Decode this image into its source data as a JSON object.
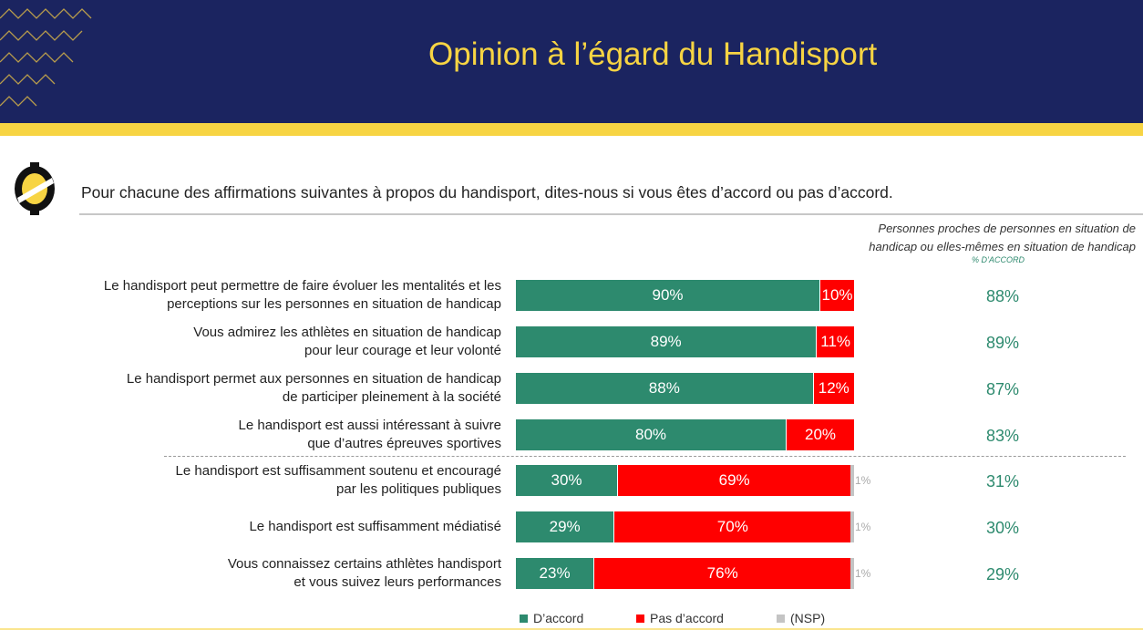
{
  "header": {
    "title": "Opinion à l’égard du Handisport"
  },
  "question": "Pour chacune des affirmations suivantes à propos du handisport, dites-nous si vous êtes d’accord ou pas d’accord.",
  "side_panel": {
    "heading": "Personnes proches de personnes en situation de handicap ou elles-mêmes en situation de handicap",
    "sub": "% D’ACCORD"
  },
  "colors": {
    "agree": "#2d8a6e",
    "disagree": "#ff0000",
    "nsp": "#c4c4c4",
    "header": "#1b2460",
    "accent": "#f7d443"
  },
  "chart_data": {
    "type": "bar",
    "orientation": "horizontal",
    "stacked": true,
    "categories": [
      "Le handisport peut permettre de faire évoluer les mentalités et les perceptions sur les personnes en situation de handicap",
      "Vous admirez les athlètes en situation de handicap pour leur courage et leur volonté",
      "Le handisport permet aux personnes en situation de handicap de participer pleinement à la société",
      "Le handisport est aussi intéressant à suivre que d’autres épreuves sportives",
      "Le handisport est suffisamment soutenu et encouragé par les politiques publiques",
      "Le handisport est suffisamment médiatisé",
      "Vous connaissez certains athlètes handisport et vous suivez leurs performances"
    ],
    "label_lines": [
      [
        "Le handisport peut permettre de faire évoluer les mentalités et les",
        "perceptions sur les personnes en situation de handicap"
      ],
      [
        "Vous admirez les athlètes en situation de handicap",
        "pour leur courage et leur volonté"
      ],
      [
        "Le handisport permet aux personnes en situation de handicap",
        "de participer pleinement à la société"
      ],
      [
        "Le handisport est aussi intéressant à suivre",
        "que d’autres épreuves sportives"
      ],
      [
        "Le handisport est suffisamment soutenu et encouragé",
        "par les politiques publiques"
      ],
      [
        "Le handisport est suffisamment médiatisé"
      ],
      [
        "Vous connaissez certains athlètes handisport",
        "et vous suivez leurs performances"
      ]
    ],
    "series": [
      {
        "name": "D’accord",
        "values": [
          90,
          89,
          88,
          80,
          30,
          29,
          23
        ]
      },
      {
        "name": "Pas d’accord",
        "values": [
          10,
          11,
          12,
          20,
          69,
          70,
          76
        ]
      },
      {
        "name": "(NSP)",
        "values": [
          0,
          0,
          0,
          0,
          1,
          1,
          1
        ]
      }
    ],
    "unit": "%",
    "side_values": [
      "88%",
      "89%",
      "87%",
      "83%",
      "31%",
      "30%",
      "29%"
    ],
    "legend": [
      "D’accord",
      "Pas d’accord",
      "(NSP)"
    ],
    "legend_position": "bottom"
  }
}
